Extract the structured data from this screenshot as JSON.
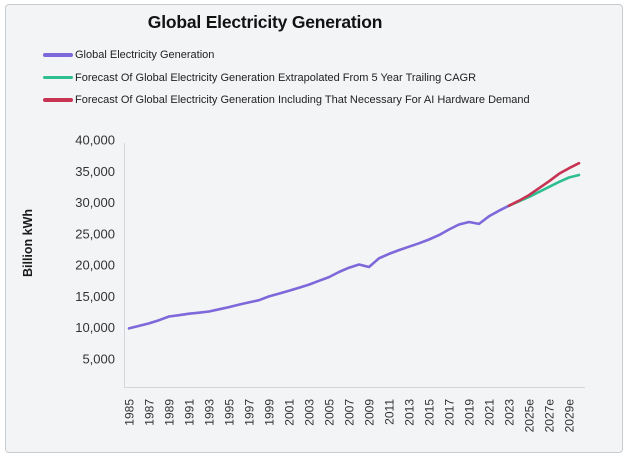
{
  "colors": {
    "card_background": "#f3f4f6",
    "card_border": "#c9cccf",
    "axis_line": "#d2d5d9",
    "actual_line": "#7e68da",
    "forecast_cagr_line": "#2fbe8f",
    "forecast_ai_line": "#c73352"
  },
  "chart_data": {
    "type": "line",
    "title": "Global Electricity Generation",
    "xlabel": "",
    "ylabel": "Billion kWh",
    "grid": false,
    "legend_position": "top-left",
    "x_base": 1985,
    "y_max": 40000,
    "ylim": [
      0,
      40000
    ],
    "xlim": [
      1985,
      2030
    ],
    "y_ticks": [
      {
        "value": 40000,
        "label": "40,000"
      },
      {
        "value": 35000,
        "label": "35,000"
      },
      {
        "value": 30000,
        "label": "30,000"
      },
      {
        "value": 25000,
        "label": "25,000"
      },
      {
        "value": 20000,
        "label": "20,000"
      },
      {
        "value": 15000,
        "label": "15,000"
      },
      {
        "value": 10000,
        "label": "10,000"
      },
      {
        "value": 5000,
        "label": "5,000"
      }
    ],
    "x_ticks": [
      {
        "year": 1985,
        "label": "1985"
      },
      {
        "year": 1987,
        "label": "1987"
      },
      {
        "year": 1989,
        "label": "1989"
      },
      {
        "year": 1991,
        "label": "1991"
      },
      {
        "year": 1993,
        "label": "1993"
      },
      {
        "year": 1995,
        "label": "1995"
      },
      {
        "year": 1997,
        "label": "1997"
      },
      {
        "year": 1999,
        "label": "1999"
      },
      {
        "year": 2001,
        "label": "2001"
      },
      {
        "year": 2003,
        "label": "2003"
      },
      {
        "year": 2005,
        "label": "2005"
      },
      {
        "year": 2007,
        "label": "2007"
      },
      {
        "year": 2009,
        "label": "2009"
      },
      {
        "year": 2011,
        "label": "2011"
      },
      {
        "year": 2013,
        "label": "2013"
      },
      {
        "year": 2015,
        "label": "2015"
      },
      {
        "year": 2017,
        "label": "2017"
      },
      {
        "year": 2019,
        "label": "2019"
      },
      {
        "year": 2021,
        "label": "2021"
      },
      {
        "year": 2023,
        "label": "2023"
      },
      {
        "year": 2025,
        "label": "2025e"
      },
      {
        "year": 2027,
        "label": "2027e"
      },
      {
        "year": 2029,
        "label": "2029e"
      }
    ],
    "series": [
      {
        "name": "Global Electricity Generation",
        "color": "#7e68da",
        "x_start": 1985,
        "values": [
          9900,
          10300,
          10700,
          11200,
          11800,
          12000,
          12250,
          12400,
          12600,
          12950,
          13300,
          13700,
          14050,
          14400,
          15000,
          15450,
          15900,
          16400,
          16900,
          17500,
          18100,
          18900,
          19600,
          20100,
          19700,
          21100,
          21800,
          22400,
          22950,
          23500,
          24100,
          24800,
          25700,
          26500,
          26900,
          26600,
          27800,
          28700,
          29500
        ]
      },
      {
        "name": "Forecast Of Global Electricity Generation Extrapolated From 5 Year Trailing CAGR",
        "color": "#2fbe8f",
        "x_start": 2023,
        "values": [
          29500,
          30200,
          30900,
          31700,
          32500,
          33300,
          34000,
          34400
        ]
      },
      {
        "name": "Forecast Of Global Electricity Generation Including That Necessary For AI Hardware Demand",
        "color": "#c73352",
        "x_start": 2023,
        "values": [
          29500,
          30300,
          31200,
          32300,
          33400,
          34600,
          35500,
          36300
        ]
      }
    ]
  }
}
